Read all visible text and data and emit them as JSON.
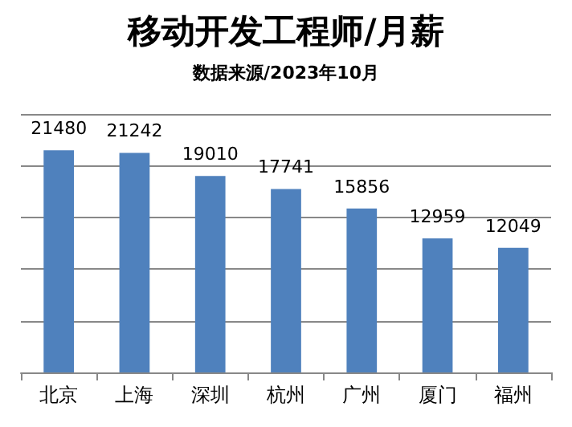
{
  "chart_data": {
    "type": "bar",
    "title": "移动开发工程师/月薪",
    "subtitle": "数据来源/2023年10月",
    "categories": [
      "北京",
      "上海",
      "深圳",
      "杭州",
      "广州",
      "厦门",
      "福州"
    ],
    "values": [
      21480,
      21242,
      19010,
      17741,
      15856,
      12959,
      12049
    ],
    "color": "#4f81bd",
    "ylim": [
      0,
      25000
    ],
    "yticks": [
      {
        "value": 0,
        "label": null
      },
      {
        "value": 5000,
        "label": null
      },
      {
        "value": 10000,
        "label": null
      },
      {
        "value": 15000,
        "label": null
      },
      {
        "value": 20000,
        "label": null
      },
      {
        "value": 25000,
        "label": null
      }
    ],
    "tick_labels": "x",
    "grid": "y",
    "data_labels": true
  }
}
